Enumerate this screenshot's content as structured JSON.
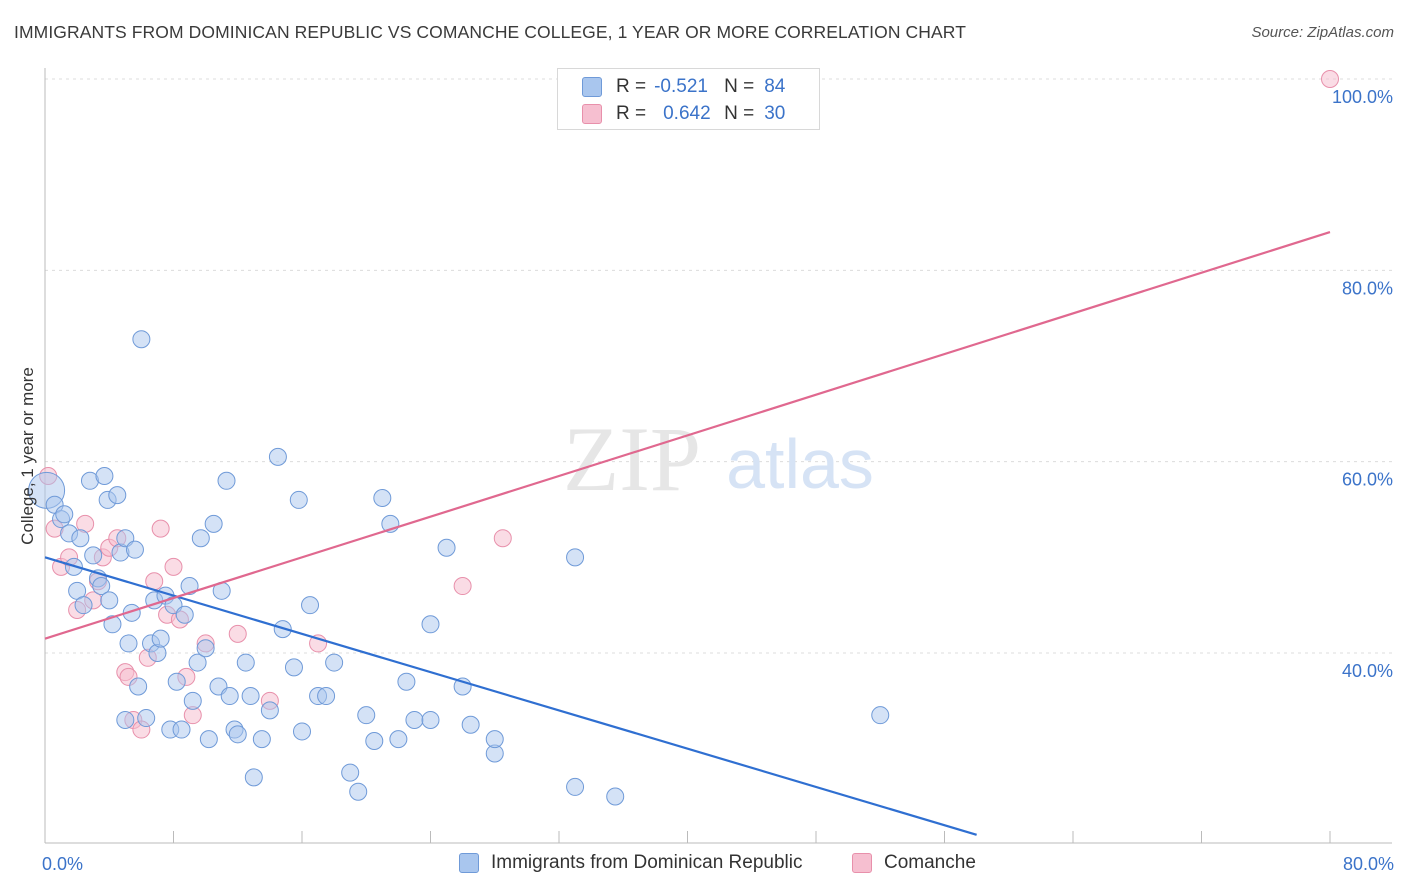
{
  "title": "IMMIGRANTS FROM DOMINICAN REPUBLIC VS COMANCHE COLLEGE, 1 YEAR OR MORE CORRELATION CHART",
  "source": "Source: ZipAtlas.com",
  "watermark": {
    "zip": "ZIP",
    "atlas": "atlas"
  },
  "legend": {
    "rows": [
      {
        "r_label": "R =",
        "r_value": "-0.521",
        "n_label": "N =",
        "n_value": "84"
      },
      {
        "r_label": "R =",
        "r_value": "0.642",
        "n_label": "N =",
        "n_value": "30"
      }
    ]
  },
  "bottom_legend": [
    "Immigrants from Dominican Republic",
    "Comanche"
  ],
  "colors": {
    "blue_fill": "#a9c6ee",
    "blue_stroke": "#6f9ad8",
    "blue_line": "#2f6fd1",
    "pink_fill": "#f6bfd0",
    "pink_stroke": "#e890ab",
    "pink_line": "#e0688f",
    "tick_text": "#3b73c9",
    "grid": "#dcdcdc"
  },
  "chart_data": {
    "type": "scatter",
    "title": "IMMIGRANTS FROM DOMINICAN REPUBLIC VS COMANCHE COLLEGE, 1 YEAR OR MORE CORRELATION CHART",
    "xlabel": "",
    "ylabel": "College, 1 year or more",
    "xlim": [
      0,
      80
    ],
    "ylim": [
      20,
      102
    ],
    "x_tick_labels": [
      {
        "value": 0,
        "label": "0.0%"
      },
      {
        "value": 80,
        "label": "80.0%"
      }
    ],
    "y_tick_labels": [
      {
        "value": 40,
        "label": "40.0%"
      },
      {
        "value": 60,
        "label": "60.0%"
      },
      {
        "value": 80,
        "label": "80.0%"
      },
      {
        "value": 100,
        "label": "100.0%"
      }
    ],
    "series": [
      {
        "name": "Immigrants from Dominican Republic",
        "color": "blue",
        "r": -0.521,
        "n": 84,
        "trend": {
          "x0": 0,
          "y0": 50.0,
          "x1": 58,
          "y1": 21.0
        },
        "points": [
          [
            0.1,
            57.0,
            "L"
          ],
          [
            0.6,
            55.5
          ],
          [
            1.0,
            54.0
          ],
          [
            1.2,
            54.5
          ],
          [
            1.5,
            52.5
          ],
          [
            1.8,
            49.0
          ],
          [
            2.0,
            46.5
          ],
          [
            2.2,
            52.0
          ],
          [
            2.4,
            45.0
          ],
          [
            2.8,
            58.0
          ],
          [
            3.0,
            50.2
          ],
          [
            3.3,
            47.8
          ],
          [
            3.5,
            47.0
          ],
          [
            3.7,
            58.5
          ],
          [
            3.9,
            56.0
          ],
          [
            4.0,
            45.5
          ],
          [
            4.2,
            43.0
          ],
          [
            4.5,
            56.5
          ],
          [
            4.7,
            50.5
          ],
          [
            5.0,
            52.0
          ],
          [
            5.0,
            33.0
          ],
          [
            5.2,
            41.0
          ],
          [
            5.4,
            44.2
          ],
          [
            5.6,
            50.8
          ],
          [
            5.8,
            36.5
          ],
          [
            6.0,
            72.8
          ],
          [
            6.3,
            33.2
          ],
          [
            6.6,
            41.0
          ],
          [
            6.8,
            45.5
          ],
          [
            7.0,
            40.0
          ],
          [
            7.2,
            41.5
          ],
          [
            7.5,
            46.0
          ],
          [
            7.8,
            32.0
          ],
          [
            8.0,
            45.0
          ],
          [
            8.2,
            37.0
          ],
          [
            8.5,
            32.0
          ],
          [
            8.7,
            44.0
          ],
          [
            9.0,
            47.0
          ],
          [
            9.2,
            35.0
          ],
          [
            9.5,
            39.0
          ],
          [
            9.7,
            52.0
          ],
          [
            10.0,
            40.5
          ],
          [
            10.2,
            31.0
          ],
          [
            10.5,
            53.5
          ],
          [
            10.8,
            36.5
          ],
          [
            11.0,
            46.5
          ],
          [
            11.3,
            58.0
          ],
          [
            11.5,
            35.5
          ],
          [
            11.8,
            32.0
          ],
          [
            12.0,
            31.5
          ],
          [
            12.5,
            39.0
          ],
          [
            12.8,
            35.5
          ],
          [
            13.0,
            27.0
          ],
          [
            13.5,
            31.0
          ],
          [
            14.0,
            34.0
          ],
          [
            14.5,
            60.5
          ],
          [
            14.8,
            42.5
          ],
          [
            15.5,
            38.5
          ],
          [
            15.8,
            56.0
          ],
          [
            16.0,
            31.8
          ],
          [
            16.5,
            45.0
          ],
          [
            17.0,
            35.5
          ],
          [
            17.5,
            35.5
          ],
          [
            18.0,
            39.0
          ],
          [
            19.0,
            27.5
          ],
          [
            19.5,
            25.5
          ],
          [
            20.0,
            33.5
          ],
          [
            20.5,
            30.8
          ],
          [
            21.0,
            56.2
          ],
          [
            21.5,
            53.5
          ],
          [
            22.0,
            31.0
          ],
          [
            22.5,
            37.0
          ],
          [
            23.0,
            33.0
          ],
          [
            24.0,
            33.0
          ],
          [
            25.0,
            51.0
          ],
          [
            26.0,
            36.5
          ],
          [
            26.5,
            32.5
          ],
          [
            28.0,
            29.5
          ],
          [
            33.0,
            26.0
          ],
          [
            35.5,
            25.0
          ],
          [
            28.0,
            31.0
          ],
          [
            33.0,
            50.0
          ],
          [
            52.0,
            33.5
          ],
          [
            24.0,
            43.0
          ]
        ]
      },
      {
        "name": "Comanche",
        "color": "pink",
        "r": 0.642,
        "n": 30,
        "trend": {
          "x0": 0,
          "y0": 41.5,
          "x1": 80,
          "y1": 84.0
        },
        "points": [
          [
            0.2,
            58.5
          ],
          [
            0.6,
            53.0
          ],
          [
            1.0,
            49.0
          ],
          [
            1.5,
            50.0
          ],
          [
            2.0,
            44.5
          ],
          [
            2.5,
            53.5
          ],
          [
            3.0,
            45.5
          ],
          [
            3.3,
            47.5
          ],
          [
            3.6,
            50.0
          ],
          [
            4.0,
            51.0
          ],
          [
            4.5,
            52.0
          ],
          [
            5.0,
            38.0
          ],
          [
            5.2,
            37.5
          ],
          [
            5.5,
            33.0
          ],
          [
            6.0,
            32.0
          ],
          [
            6.4,
            39.5
          ],
          [
            6.8,
            47.5
          ],
          [
            7.2,
            53.0
          ],
          [
            7.6,
            44.0
          ],
          [
            8.0,
            49.0
          ],
          [
            8.4,
            43.5
          ],
          [
            8.8,
            37.5
          ],
          [
            9.2,
            33.5
          ],
          [
            10.0,
            41.0
          ],
          [
            12.0,
            42.0
          ],
          [
            14.0,
            35.0
          ],
          [
            17.0,
            41.0
          ],
          [
            26.0,
            47.0
          ],
          [
            28.5,
            52.0
          ],
          [
            80.0,
            100.0
          ]
        ]
      }
    ]
  }
}
